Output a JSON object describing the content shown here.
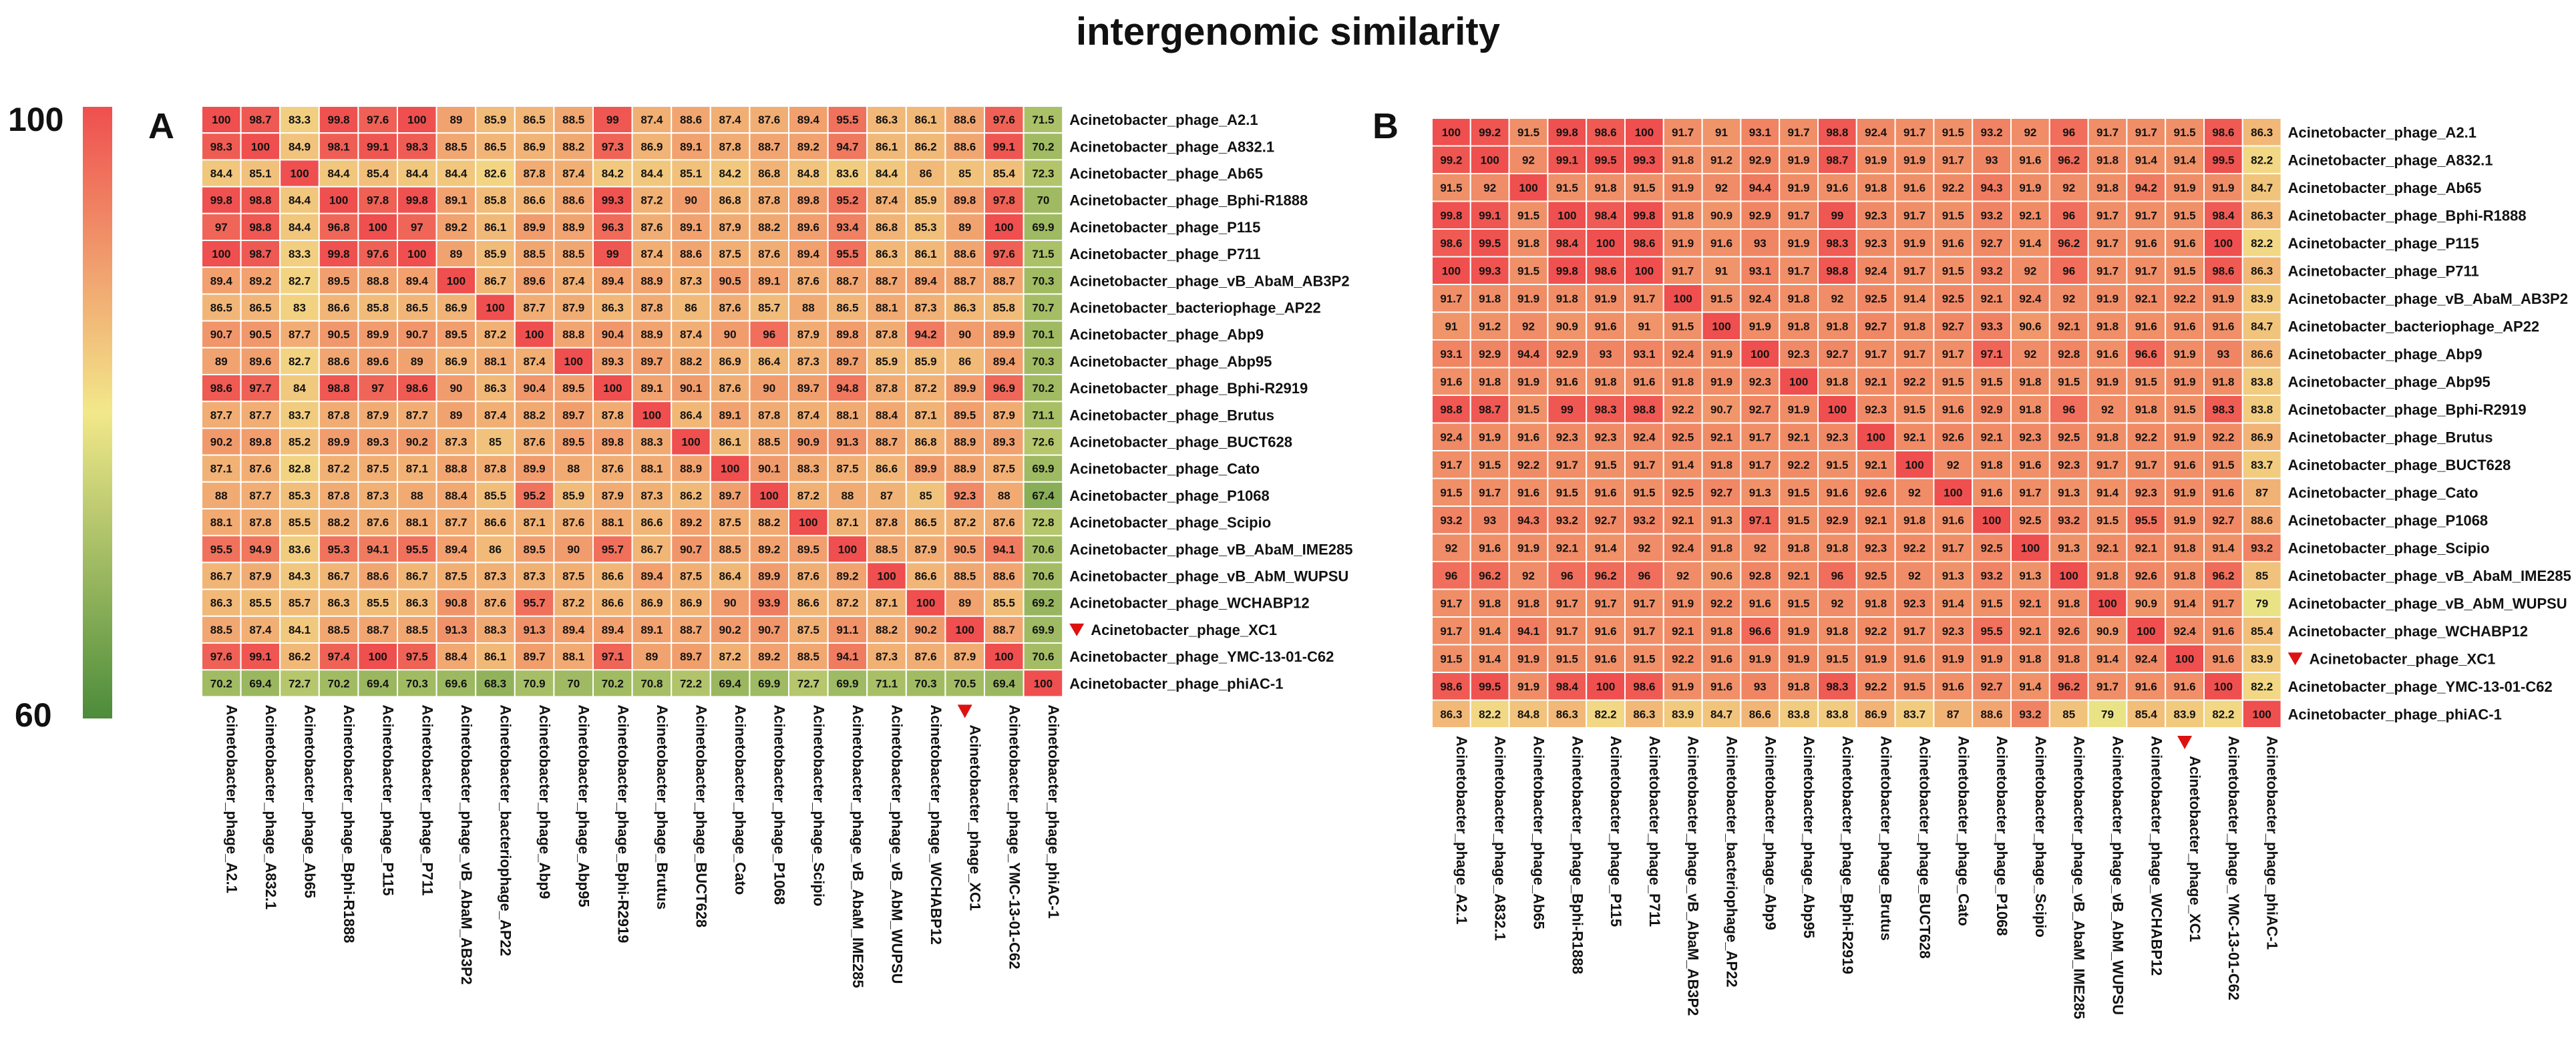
{
  "figure": {
    "title": "intergenomic similarity"
  },
  "colorbar": {
    "max_label": "100",
    "min_label": "60",
    "min": 60,
    "max": 100,
    "colors": {
      "low": "#4c8c3a",
      "mid": "#f2e88a",
      "high": "#ef4f4f"
    }
  },
  "marker_color": "#dd1111",
  "chart_data": [
    {
      "type": "heatmap",
      "panel": "A",
      "title": "intergenomic similarity",
      "marked_label": "Acinetobacter_phage_XC1",
      "labels": [
        "Acinetobacter_phage_A2.1",
        "Acinetobacter_phage_A832.1",
        "Acinetobacter_phage_Ab65",
        "Acinetobacter_phage_Bphi-R1888",
        "Acinetobacter_phage_P115",
        "Acinetobacter_phage_P711",
        "Acinetobacter_phage_vB_AbaM_AB3P2",
        "Acinetobacter_bacteriophage_AP22",
        "Acinetobacter_phage_Abp9",
        "Acinetobacter_phage_Abp95",
        "Acinetobacter_phage_Bphi-R2919",
        "Acinetobacter_phage_Brutus",
        "Acinetobacter_phage_BUCT628",
        "Acinetobacter_phage_Cato",
        "Acinetobacter_phage_P1068",
        "Acinetobacter_phage_Scipio",
        "Acinetobacter_phage_vB_AbaM_IME285",
        "Acinetobacter_phage_vB_AbM_WUPSU",
        "Acinetobacter_phage_WCHABP12",
        "Acinetobacter_phage_XC1",
        "Acinetobacter_phage_YMC-13-01-C62",
        "Acinetobacter_phage_phiAC-1"
      ],
      "values": [
        [
          100,
          98.7,
          83.3,
          99.8,
          97.6,
          100,
          89,
          85.9,
          86.5,
          88.5,
          99,
          87.4,
          88.6,
          87.4,
          87.6,
          89.4,
          95.5,
          86.3,
          86.1,
          88.6,
          97.6,
          71.5
        ],
        [
          98.3,
          100,
          84.9,
          98.1,
          99.1,
          98.3,
          88.5,
          86.5,
          86.9,
          88.2,
          97.3,
          86.9,
          89.1,
          87.8,
          88.7,
          89.2,
          94.7,
          86.1,
          86.2,
          88.6,
          99.1,
          70.2
        ],
        [
          84.4,
          85.1,
          100,
          84.4,
          85.4,
          84.4,
          84.4,
          82.6,
          87.8,
          87.4,
          84.2,
          84.4,
          85.1,
          84.2,
          86.8,
          84.8,
          83.6,
          84.4,
          86,
          85,
          85.4,
          72.3
        ],
        [
          99.8,
          98.8,
          84.4,
          100,
          97.8,
          99.8,
          89.1,
          85.8,
          86.6,
          88.6,
          99.3,
          87.2,
          90,
          86.8,
          87.8,
          89.8,
          95.2,
          87.4,
          85.9,
          89.8,
          97.8,
          70
        ],
        [
          97,
          98.8,
          84.4,
          96.8,
          100,
          97,
          89.2,
          86.1,
          89.9,
          88.9,
          96.3,
          87.6,
          89.1,
          87.9,
          88.2,
          89.6,
          93.4,
          86.8,
          85.3,
          89,
          100,
          69.9
        ],
        [
          100,
          98.7,
          83.3,
          99.8,
          97.6,
          100,
          89,
          85.9,
          88.5,
          88.5,
          99,
          87.4,
          88.6,
          87.5,
          87.6,
          89.4,
          95.5,
          86.3,
          86.1,
          88.6,
          97.6,
          71.5
        ],
        [
          89.4,
          89.2,
          82.7,
          89.5,
          88.8,
          89.4,
          100,
          86.7,
          89.6,
          87.4,
          89.4,
          88.9,
          87.3,
          90.5,
          89.1,
          87.6,
          88.7,
          88.7,
          89.4,
          88.7,
          88.7,
          70.3
        ],
        [
          86.5,
          86.5,
          83,
          86.6,
          85.8,
          86.5,
          86.9,
          100,
          87.7,
          87.9,
          86.3,
          87.8,
          86,
          87.6,
          85.7,
          88,
          86.5,
          88.1,
          87.3,
          86.3,
          85.8,
          70.7
        ],
        [
          90.7,
          90.5,
          87.7,
          90.5,
          89.9,
          90.7,
          89.5,
          87.2,
          100,
          88.8,
          90.4,
          88.9,
          87.4,
          90,
          96,
          87.9,
          89.8,
          87.8,
          94.2,
          90,
          89.9,
          70.1
        ],
        [
          89,
          89.6,
          82.7,
          88.6,
          89.6,
          89,
          86.9,
          88.1,
          87.4,
          100,
          89.3,
          89.7,
          88.2,
          86.9,
          86.4,
          87.3,
          89.7,
          85.9,
          85.9,
          86,
          89.4,
          70.3
        ],
        [
          98.6,
          97.7,
          84,
          98.8,
          97,
          98.6,
          90,
          86.3,
          90.4,
          89.5,
          100,
          89.1,
          90.1,
          87.6,
          90,
          89.7,
          94.8,
          87.8,
          87.2,
          89.9,
          96.9,
          70.2
        ],
        [
          87.7,
          87.7,
          83.7,
          87.8,
          87.9,
          87.7,
          89,
          87.4,
          88.2,
          89.7,
          87.8,
          100,
          86.4,
          89.1,
          87.8,
          87.4,
          88.1,
          88.4,
          87.1,
          89.5,
          87.9,
          71.1
        ],
        [
          90.2,
          89.8,
          85.2,
          89.9,
          89.3,
          90.2,
          87.3,
          85,
          87.6,
          89.5,
          89.8,
          88.3,
          100,
          86.1,
          88.5,
          90.9,
          91.3,
          88.7,
          86.8,
          88.9,
          89.3,
          72.6
        ],
        [
          87.1,
          87.6,
          82.8,
          87.2,
          87.5,
          87.1,
          88.8,
          87.8,
          89.9,
          88,
          87.6,
          88.1,
          88.9,
          100,
          90.1,
          88.3,
          87.5,
          86.6,
          89.9,
          88.9,
          87.5,
          69.9
        ],
        [
          88,
          87.7,
          85.3,
          87.8,
          87.3,
          88,
          88.4,
          85.5,
          95.2,
          85.9,
          87.9,
          87.3,
          86.2,
          89.7,
          100,
          87.2,
          88,
          87,
          85,
          92.3,
          88,
          67.4
        ],
        [
          88.1,
          87.8,
          85.5,
          88.2,
          87.6,
          88.1,
          87.7,
          86.6,
          87.1,
          87.6,
          88.1,
          86.6,
          89.2,
          87.5,
          88.2,
          100,
          87.1,
          87.8,
          86.5,
          87.2,
          87.6,
          72.8
        ],
        [
          95.5,
          94.9,
          83.6,
          95.3,
          94.1,
          95.5,
          89.4,
          86,
          89.5,
          90,
          95.7,
          86.7,
          90.7,
          88.5,
          89.2,
          89.5,
          100,
          88.5,
          87.9,
          90.5,
          94.1,
          70.6
        ],
        [
          86.7,
          87.9,
          84.3,
          86.7,
          88.6,
          86.7,
          87.5,
          87.3,
          87.3,
          87.5,
          86.6,
          89.4,
          87.5,
          86.4,
          89.9,
          87.6,
          89.2,
          100,
          86.6,
          88.5,
          88.6,
          70.6
        ],
        [
          86.3,
          85.5,
          85.7,
          86.3,
          85.5,
          86.3,
          90.8,
          87.6,
          95.7,
          87.2,
          86.6,
          86.9,
          86.9,
          90,
          93.9,
          86.6,
          87.2,
          87.1,
          100,
          89,
          85.5,
          69.2
        ],
        [
          88.5,
          87.4,
          84.1,
          88.5,
          88.7,
          88.5,
          91.3,
          88.3,
          91.3,
          89.4,
          89.4,
          89.1,
          88.7,
          90.2,
          90.7,
          87.5,
          91.1,
          88.2,
          90.2,
          100,
          88.7,
          69.9
        ],
        [
          97.6,
          99.1,
          86.2,
          97.4,
          100,
          97.5,
          88.4,
          86.1,
          89.7,
          88.1,
          97.1,
          89,
          89.7,
          87.2,
          89.2,
          88.5,
          94.1,
          87.3,
          87.6,
          87.9,
          100,
          70.6
        ],
        [
          70.2,
          69.4,
          72.7,
          70.2,
          69.4,
          70.3,
          69.6,
          68.3,
          70.9,
          70,
          70.2,
          70.8,
          72.2,
          69.4,
          69.9,
          72.7,
          69.9,
          71.1,
          70.3,
          70.5,
          69.4,
          100
        ]
      ]
    },
    {
      "type": "heatmap",
      "panel": "B",
      "title": "intergenomic similarity",
      "marked_label": "Acinetobacter_phage_XC1",
      "labels": [
        "Acinetobacter_phage_A2.1",
        "Acinetobacter_phage_A832.1",
        "Acinetobacter_phage_Ab65",
        "Acinetobacter_phage_Bphi-R1888",
        "Acinetobacter_phage_P115",
        "Acinetobacter_phage_P711",
        "Acinetobacter_phage_vB_AbaM_AB3P2",
        "Acinetobacter_bacteriophage_AP22",
        "Acinetobacter_phage_Abp9",
        "Acinetobacter_phage_Abp95",
        "Acinetobacter_phage_Bphi-R2919",
        "Acinetobacter_phage_Brutus",
        "Acinetobacter_phage_BUCT628",
        "Acinetobacter_phage_Cato",
        "Acinetobacter_phage_P1068",
        "Acinetobacter_phage_Scipio",
        "Acinetobacter_phage_vB_AbaM_IME285",
        "Acinetobacter_phage_vB_AbM_WUPSU",
        "Acinetobacter_phage_WCHABP12",
        "Acinetobacter_phage_XC1",
        "Acinetobacter_phage_YMC-13-01-C62",
        "Acinetobacter_phage_phiAC-1"
      ],
      "values": [
        [
          100,
          99.2,
          91.5,
          99.8,
          98.6,
          100,
          91.7,
          91,
          93.1,
          91.7,
          98.8,
          92.4,
          91.7,
          91.5,
          93.2,
          92,
          96,
          91.7,
          91.7,
          91.5,
          98.6,
          86.3
        ],
        [
          99.2,
          100,
          92,
          99.1,
          99.5,
          99.3,
          91.8,
          91.2,
          92.9,
          91.9,
          98.7,
          91.9,
          91.9,
          91.7,
          93,
          91.6,
          96.2,
          91.8,
          91.4,
          91.4,
          99.5,
          82.2
        ],
        [
          91.5,
          92,
          100,
          91.5,
          91.8,
          91.5,
          91.9,
          92,
          94.4,
          91.9,
          91.6,
          91.8,
          91.6,
          92.2,
          94.3,
          91.9,
          92,
          91.8,
          94.2,
          91.9,
          91.9,
          84.7
        ],
        [
          99.8,
          99.1,
          91.5,
          100,
          98.4,
          99.8,
          91.8,
          90.9,
          92.9,
          91.7,
          99,
          92.3,
          91.7,
          91.5,
          93.2,
          92.1,
          96,
          91.7,
          91.7,
          91.5,
          98.4,
          86.3
        ],
        [
          98.6,
          99.5,
          91.8,
          98.4,
          100,
          98.6,
          91.9,
          91.6,
          93,
          91.9,
          98.3,
          92.3,
          91.9,
          91.6,
          92.7,
          91.4,
          96.2,
          91.7,
          91.6,
          91.6,
          100,
          82.2
        ],
        [
          100,
          99.3,
          91.5,
          99.8,
          98.6,
          100,
          91.7,
          91,
          93.1,
          91.7,
          98.8,
          92.4,
          91.7,
          91.5,
          93.2,
          92,
          96,
          91.7,
          91.7,
          91.5,
          98.6,
          86.3
        ],
        [
          91.7,
          91.8,
          91.9,
          91.8,
          91.9,
          91.7,
          100,
          91.5,
          92.4,
          91.8,
          92,
          92.5,
          91.4,
          92.5,
          92.1,
          92.4,
          92,
          91.9,
          92.1,
          92.2,
          91.9,
          83.9
        ],
        [
          91,
          91.2,
          92,
          90.9,
          91.6,
          91,
          91.5,
          100,
          91.9,
          91.8,
          91.8,
          92.7,
          91.8,
          92.7,
          93.3,
          90.6,
          92.1,
          91.8,
          91.6,
          91.6,
          91.6,
          84.7
        ],
        [
          93.1,
          92.9,
          94.4,
          92.9,
          93,
          93.1,
          92.4,
          91.9,
          100,
          92.3,
          92.7,
          91.7,
          91.7,
          91.7,
          97.1,
          92,
          92.8,
          91.6,
          96.6,
          91.9,
          93,
          86.6
        ],
        [
          91.6,
          91.8,
          91.9,
          91.6,
          91.8,
          91.6,
          91.8,
          91.9,
          92.3,
          100,
          91.8,
          92.1,
          92.2,
          91.5,
          91.5,
          91.8,
          91.5,
          91.9,
          91.5,
          91.9,
          91.8,
          83.8
        ],
        [
          98.8,
          98.7,
          91.5,
          99,
          98.3,
          98.8,
          92.2,
          90.7,
          92.7,
          91.9,
          100,
          92.3,
          91.5,
          91.6,
          92.9,
          91.8,
          96,
          92,
          91.8,
          91.5,
          98.3,
          83.8
        ],
        [
          92.4,
          91.9,
          91.6,
          92.3,
          92.3,
          92.4,
          92.5,
          92.1,
          91.7,
          92.1,
          92.3,
          100,
          92.1,
          92.6,
          92.1,
          92.3,
          92.5,
          91.8,
          92.2,
          91.9,
          92.2,
          86.9
        ],
        [
          91.7,
          91.5,
          92.2,
          91.7,
          91.5,
          91.7,
          91.4,
          91.8,
          91.7,
          92.2,
          91.5,
          92.1,
          100,
          92,
          91.8,
          91.6,
          92.3,
          91.7,
          91.7,
          91.6,
          91.5,
          83.7
        ],
        [
          91.5,
          91.7,
          91.6,
          91.5,
          91.6,
          91.5,
          92.5,
          92.7,
          91.3,
          91.5,
          91.6,
          92.6,
          92,
          100,
          91.6,
          91.7,
          91.3,
          91.4,
          92.3,
          91.9,
          91.6,
          87
        ],
        [
          93.2,
          93,
          94.3,
          93.2,
          92.7,
          93.2,
          92.1,
          91.3,
          97.1,
          91.5,
          92.9,
          92.1,
          91.8,
          91.6,
          100,
          92.5,
          93.2,
          91.5,
          95.5,
          91.9,
          92.7,
          88.6
        ],
        [
          92,
          91.6,
          91.9,
          92.1,
          91.4,
          92,
          92.4,
          91.8,
          92,
          91.8,
          91.8,
          92.3,
          92.2,
          91.7,
          92.5,
          100,
          91.3,
          92.1,
          92.1,
          91.8,
          91.4,
          93.2
        ],
        [
          96,
          96.2,
          92,
          96,
          96.2,
          96,
          92,
          90.6,
          92.8,
          92.1,
          96,
          92.5,
          92,
          91.3,
          93.2,
          91.3,
          100,
          91.8,
          92.6,
          91.8,
          96.2,
          85
        ],
        [
          91.7,
          91.8,
          91.8,
          91.7,
          91.7,
          91.7,
          91.9,
          92.2,
          91.6,
          91.5,
          92,
          91.8,
          92.3,
          91.4,
          91.5,
          92.1,
          91.8,
          100,
          90.9,
          91.4,
          91.7,
          79
        ],
        [
          91.7,
          91.4,
          94.1,
          91.7,
          91.6,
          91.7,
          92.1,
          91.8,
          96.6,
          91.9,
          91.8,
          92.2,
          91.7,
          92.3,
          95.5,
          92.1,
          92.6,
          90.9,
          100,
          92.4,
          91.6,
          85.4
        ],
        [
          91.5,
          91.4,
          91.9,
          91.5,
          91.6,
          91.5,
          92.2,
          91.6,
          91.9,
          91.9,
          91.5,
          91.9,
          91.6,
          91.9,
          91.9,
          91.8,
          91.8,
          91.4,
          92.4,
          100,
          91.6,
          83.9
        ],
        [
          98.6,
          99.5,
          91.9,
          98.4,
          100,
          98.6,
          91.9,
          91.6,
          93,
          91.8,
          98.3,
          92.2,
          91.5,
          91.6,
          92.7,
          91.4,
          96.2,
          91.7,
          91.6,
          91.6,
          100,
          82.2
        ],
        [
          86.3,
          82.2,
          84.8,
          86.3,
          82.2,
          86.3,
          83.9,
          84.7,
          86.6,
          83.8,
          83.8,
          86.9,
          83.7,
          87,
          88.6,
          93.2,
          85,
          79,
          85.4,
          83.9,
          82.2,
          100
        ]
      ]
    }
  ]
}
